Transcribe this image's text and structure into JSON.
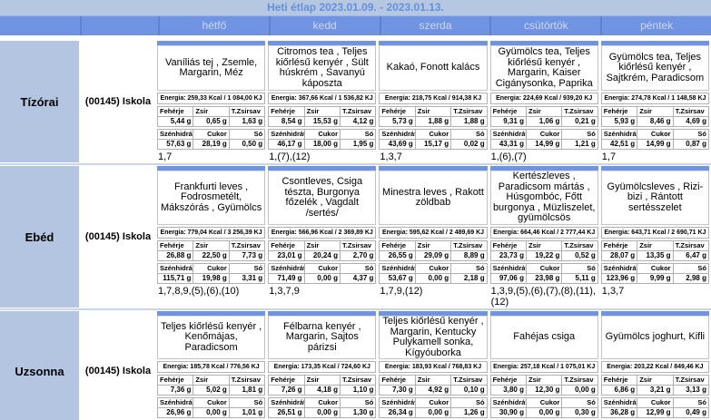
{
  "title": "Heti étlap 2023.01.09. - 2023.01.13.",
  "days": [
    "hétfő",
    "kedd",
    "szerda",
    "csütörtök",
    "péntek"
  ],
  "labels": {
    "protein": "Fehérje",
    "fat": "Zsir",
    "transfat": "T.Zsirsav",
    "carb": "Szénhidrát",
    "sugar": "Cukor",
    "salt": "Só"
  },
  "colors": {
    "accent": "#7094e2",
    "header_band": "#b6c7e1",
    "row_label": "#b3c5e0",
    "title_text": "#6590dc"
  },
  "rows": [
    {
      "meal": "Tízórai",
      "school": "(00145) Iskola",
      "cells": [
        {
          "desc": "Vaníliás tej , Zsemle, Margarin, Méz",
          "energia": "Energia: 259,33 Kcal / 1 084,00 KJ",
          "protein": "5,44 g",
          "fat": "0,65 g",
          "transfat": "1,63 g",
          "carb": "57,63 g",
          "sugar": "28,19 g",
          "salt": "0,50 g",
          "allergens": "1,7"
        },
        {
          "desc": "Citromos tea , Teljes kiőrlésű kenyér , Sült húskrém , Savanyú káposzta",
          "energia": "Energia: 367,66 Kcal / 1 536,82 KJ",
          "protein": "8,54 g",
          "fat": "15,53 g",
          "transfat": "4,12 g",
          "carb": "46,17 g",
          "sugar": "18,00 g",
          "salt": "1,95 g",
          "allergens": "1,(7),(12)"
        },
        {
          "desc": "Kakaó, Fonott kalács",
          "energia": "Energia: 218,75 Kcal / 914,38 KJ",
          "protein": "5,73 g",
          "fat": "1,88 g",
          "transfat": "1,88 g",
          "carb": "43,69 g",
          "sugar": "15,17 g",
          "salt": "0,02 g",
          "allergens": "1,3,7"
        },
        {
          "desc": "Gyümölcs tea, Teljes kiőrlésű kenyér , Margarin, Kaiser Cigánysonka, Paprika",
          "energia": "Energia: 224,69 Kcal / 939,20 KJ",
          "protein": "9,31 g",
          "fat": "1,06 g",
          "transfat": "0,21 g",
          "carb": "43,31 g",
          "sugar": "14,99 g",
          "salt": "1,21 g",
          "allergens": "1,(6),(7)"
        },
        {
          "desc": "Gyümölcs tea, Teljes kiőrlésű kenyér , Sajtkrém, Paradicsom",
          "energia": "Energia: 274,78 Kcal / 1 148,58 KJ",
          "protein": "5,93 g",
          "fat": "8,46 g",
          "transfat": "4,69 g",
          "carb": "42,51 g",
          "sugar": "14,99 g",
          "salt": "0,87 g",
          "allergens": "1,7"
        }
      ]
    },
    {
      "meal": "Ebéd",
      "school": "(00145) Iskola",
      "cells": [
        {
          "desc": "Frankfurti leves , Fodrosmetélt, Mákszórás , Gyümölcs",
          "energia": "Energia: 779,04 Kcal / 3 256,39 KJ",
          "protein": "26,88 g",
          "fat": "22,50 g",
          "transfat": "7,73 g",
          "carb": "115,71 g",
          "sugar": "19,98 g",
          "salt": "3,31 g",
          "allergens": "1,7,8,9,(5),(6),(10)"
        },
        {
          "desc": "Csontleves, Csiga tészta, Burgonya főzelék , Vagdalt /sertés/",
          "energia": "Energia: 566,96 Kcal / 2 369,89 KJ",
          "protein": "23,01 g",
          "fat": "20,24 g",
          "transfat": "2,70 g",
          "carb": "71,49 g",
          "sugar": "0,00 g",
          "salt": "4,37 g",
          "allergens": "1,3,7,9"
        },
        {
          "desc": "Minestra leves , Rakott zöldbab",
          "energia": "Energia: 595,62 Kcal / 2 489,69 KJ",
          "protein": "26,55 g",
          "fat": "29,09 g",
          "transfat": "8,89 g",
          "carb": "53,67 g",
          "sugar": "0,00 g",
          "salt": "2,18 g",
          "allergens": "1,7,9,(12)"
        },
        {
          "desc": "Kertészleves , Paradicsom mártás , Húsgombóc, Főtt burgonya , Müzliszelet, gyümölcsös",
          "energia": "Energia: 664,46 Kcal / 2 777,44 KJ",
          "protein": "23,73 g",
          "fat": "19,22 g",
          "transfat": "0,52 g",
          "carb": "97,06 g",
          "sugar": "23,98 g",
          "salt": "5,11 g",
          "allergens": "1,3,9,(5),(6),(7),(8),(11),(12)"
        },
        {
          "desc": "Gyümölcsleves , Rizi-bizi , Rántott sertésszelet",
          "energia": "Energia: 643,71 Kcal / 2 690,71 KJ",
          "protein": "28,07 g",
          "fat": "13,35 g",
          "transfat": "6,47 g",
          "carb": "123,96 g",
          "sugar": "9,99 g",
          "salt": "2,98 g",
          "allergens": "1,3,7"
        }
      ]
    },
    {
      "meal": "Uzsonna",
      "school": "(00145) Iskola",
      "cells": [
        {
          "desc": "Teljes kiőrlésű kenyér , Kenőmájas, Paradicsom",
          "energia": "Energia: 185,78 Kcal / 776,56 KJ",
          "protein": "7,36 g",
          "fat": "5,02 g",
          "transfat": "1,81 g",
          "carb": "26,96 g",
          "sugar": "0,00 g",
          "salt": "1,01 g",
          "allergens": ""
        },
        {
          "desc": "Félbarna kenyér , Margarin, Sajtos párizsi",
          "energia": "Energia: 173,35 Kcal / 724,60 KJ",
          "protein": "7,26 g",
          "fat": "4,18 g",
          "transfat": "1,10 g",
          "carb": "26,51 g",
          "sugar": "0,00 g",
          "salt": "1,30 g",
          "allergens": ""
        },
        {
          "desc": "Teljes kiőrlésű kenyér , Margarin, Kentucky Pulykamell sonka, Kígyóuborka",
          "energia": "Energia: 183,93 Kcal / 768,83 KJ",
          "protein": "7,30 g",
          "fat": "4,92 g",
          "transfat": "0,10 g",
          "carb": "26,34 g",
          "sugar": "0,00 g",
          "salt": "1,26 g",
          "allergens": ""
        },
        {
          "desc": "Fahéjas csiga",
          "energia": "Energia: 257,18 Kcal / 1 075,01 KJ",
          "protein": "3,80 g",
          "fat": "12,30 g",
          "transfat": "0,00 g",
          "carb": "30,90 g",
          "sugar": "0,00 g",
          "salt": "0,30 g",
          "allergens": ""
        },
        {
          "desc": "Gyümölcs joghurt, Kifli",
          "energia": "Energia: 203,22 Kcal / 849,46 KJ",
          "protein": "6,86 g",
          "fat": "3,21 g",
          "transfat": "3,13 g",
          "carb": "36,28 g",
          "sugar": "12,99 g",
          "salt": "0,49 g",
          "allergens": ""
        }
      ]
    }
  ]
}
